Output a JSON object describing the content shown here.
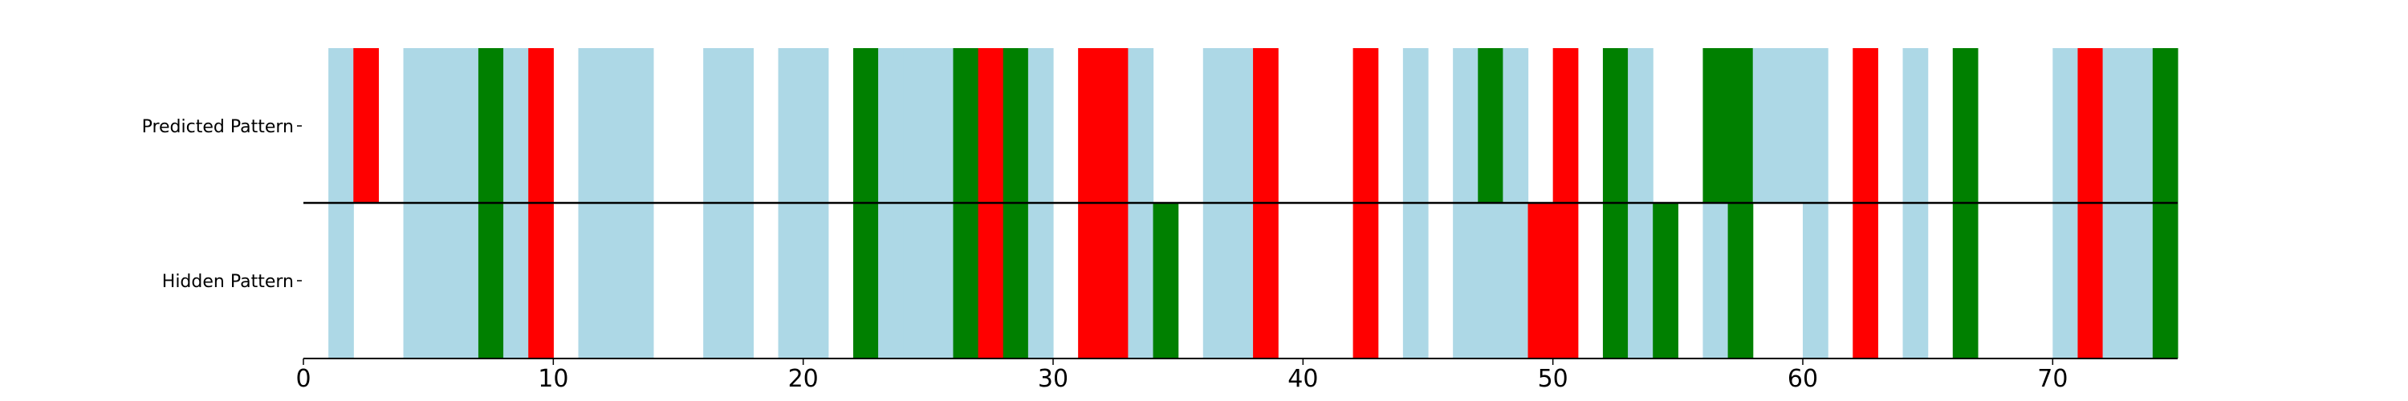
{
  "chart_data": {
    "type": "heatmap",
    "xlim": [
      0,
      75
    ],
    "rows": [
      "Predicted Pattern",
      "Hidden Pattern"
    ],
    "xticks": [
      0,
      10,
      20,
      30,
      40,
      50,
      60,
      70
    ],
    "colors": {
      "L": "#add8e6",
      "G": "#008000",
      "R": "#ff0000",
      "W": "#ffffff"
    },
    "predicted": [
      "W",
      "L",
      "R",
      "W",
      "L",
      "L",
      "L",
      "G",
      "L",
      "R",
      "W",
      "L",
      "L",
      "L",
      "W",
      "W",
      "L",
      "L",
      "W",
      "L",
      "L",
      "W",
      "G",
      "L",
      "L",
      "L",
      "G",
      "R",
      "G",
      "L",
      "W",
      "R",
      "R",
      "L",
      "W",
      "W",
      "L",
      "L",
      "R",
      "W",
      "W",
      "W",
      "R",
      "W",
      "L",
      "W",
      "L",
      "G",
      "L",
      "W",
      "R",
      "W",
      "G",
      "L",
      "W",
      "W",
      "G",
      "G",
      "L",
      "L",
      "L",
      "W",
      "R",
      "W",
      "L",
      "W",
      "G",
      "W",
      "W",
      "W",
      "L",
      "R",
      "L",
      "L",
      "G"
    ],
    "hidden": [
      "W",
      "L",
      "W",
      "W",
      "L",
      "L",
      "L",
      "G",
      "L",
      "R",
      "W",
      "L",
      "L",
      "L",
      "W",
      "W",
      "L",
      "L",
      "W",
      "L",
      "L",
      "W",
      "G",
      "L",
      "L",
      "L",
      "G",
      "R",
      "G",
      "L",
      "W",
      "R",
      "R",
      "L",
      "G",
      "W",
      "L",
      "L",
      "R",
      "W",
      "W",
      "W",
      "R",
      "W",
      "L",
      "W",
      "L",
      "L",
      "L",
      "R",
      "R",
      "W",
      "G",
      "L",
      "G",
      "W",
      "L",
      "G",
      "W",
      "W",
      "L",
      "W",
      "R",
      "W",
      "L",
      "W",
      "G",
      "W",
      "W",
      "W",
      "L",
      "R",
      "L",
      "L",
      "G"
    ]
  }
}
